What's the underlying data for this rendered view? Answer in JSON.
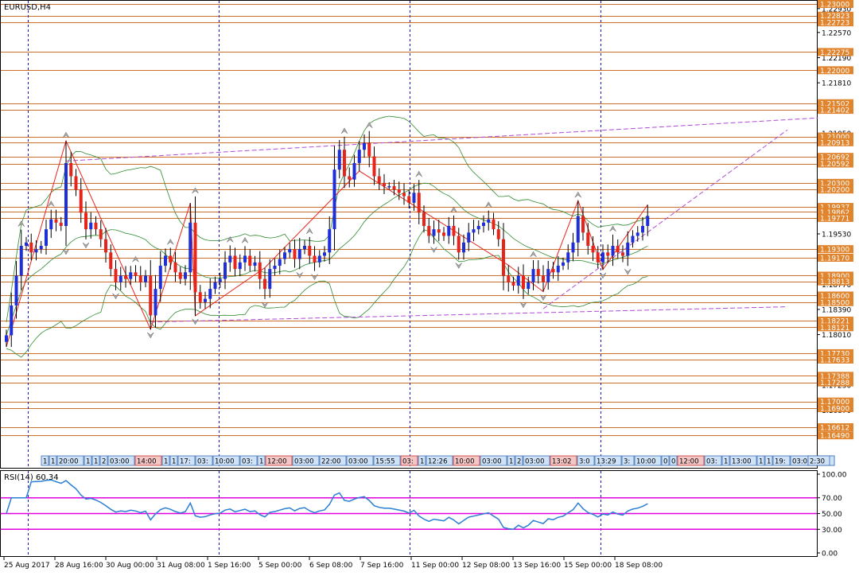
{
  "chart_data": [
    {
      "type": "candlestick",
      "title": "EURUSD,H4",
      "symbol": "EURUSD",
      "timeframe": "H4",
      "ylim": [
        1.163,
        1.23
      ],
      "x_labels": [
        "25 Aug 2017",
        "28 Aug 16:00",
        "30 Aug 00:00",
        "31 Aug 08:00",
        "1 Sep 16:00",
        "5 Sep 00:00",
        "6 Sep 08:00",
        "7 Sep 16:00",
        "11 Sep 00:00",
        "12 Sep 08:00",
        "13 Sep 16:00",
        "15 Sep 00:00",
        "18 Sep 08:00"
      ],
      "y_ticks": [
        "1.22930",
        "1.22570",
        "1.22190",
        "1.21810",
        "1.21430",
        "1.21050",
        "1.20670",
        "1.20290",
        "1.19910",
        "1.19530",
        "1.19150",
        "1.18770",
        "1.18390",
        "1.18010",
        "1.17630",
        "1.17250",
        "1.16870",
        "1.16490"
      ],
      "price_levels": [
        {
          "value": 1.23,
          "label": "1.23000"
        },
        {
          "value": 1.22823,
          "label": "1.22823"
        },
        {
          "value": 1.22723,
          "label": "1.22723"
        },
        {
          "value": 1.22275,
          "label": "1.22275"
        },
        {
          "value": 1.22,
          "label": "1.22000"
        },
        {
          "value": 1.21502,
          "label": "1.21502"
        },
        {
          "value": 1.21402,
          "label": "1.21402"
        },
        {
          "value": 1.21,
          "label": "1.21000"
        },
        {
          "value": 1.20913,
          "label": "1.20913"
        },
        {
          "value": 1.20692,
          "label": "1.20692"
        },
        {
          "value": 1.20592,
          "label": "1.20592"
        },
        {
          "value": 1.203,
          "label": "1.20300"
        },
        {
          "value": 1.202,
          "label": "1.20200"
        },
        {
          "value": 1.19937,
          "label": "1.19937"
        },
        {
          "value": 1.19862,
          "label": "1.19862"
        },
        {
          "value": 1.19771,
          "label": "1.19771"
        },
        {
          "value": 1.193,
          "label": "1.19300"
        },
        {
          "value": 1.1917,
          "label": "1.19170"
        },
        {
          "value": 1.189,
          "label": "1.18900"
        },
        {
          "value": 1.18813,
          "label": "1.18813"
        },
        {
          "value": 1.186,
          "label": "1.18600"
        },
        {
          "value": 1.185,
          "label": "1.18500"
        },
        {
          "value": 1.18221,
          "label": "1.18221"
        },
        {
          "value": 1.18121,
          "label": "1.18121"
        },
        {
          "value": 1.1773,
          "label": "1.17730"
        },
        {
          "value": 1.17633,
          "label": "1.17633"
        },
        {
          "value": 1.17388,
          "label": "1.17388"
        },
        {
          "value": 1.17288,
          "label": "1.17288"
        },
        {
          "value": 1.17,
          "label": "1.17000"
        },
        {
          "value": 1.169,
          "label": "1.16900"
        },
        {
          "value": 1.16612,
          "label": "1.16612"
        },
        {
          "value": 1.1649,
          "label": "1.16490"
        }
      ],
      "closes": [
        1.18,
        1.1845,
        1.189,
        1.1935,
        1.194,
        1.1925,
        1.193,
        1.1935,
        1.196,
        1.1975,
        1.197,
        1.1965,
        1.206,
        1.204,
        1.202,
        1.1985,
        1.196,
        1.197,
        1.196,
        1.1945,
        1.1925,
        1.19,
        1.188,
        1.189,
        1.1885,
        1.1895,
        1.189,
        1.188,
        1.189,
        1.183,
        1.187,
        1.1905,
        1.192,
        1.191,
        1.1895,
        1.1885,
        1.1895,
        1.197,
        1.1865,
        1.185,
        1.1855,
        1.187,
        1.188,
        1.1885,
        1.191,
        1.192,
        1.19,
        1.191,
        1.192,
        1.1905,
        1.191,
        1.1885,
        1.187,
        1.19,
        1.1905,
        1.1915,
        1.1925,
        1.193,
        1.1915,
        1.193,
        1.1935,
        1.192,
        1.191,
        1.192,
        1.1925,
        1.196,
        1.205,
        1.208,
        1.204,
        1.2035,
        1.206,
        1.208,
        1.209,
        1.207,
        1.204,
        1.203,
        1.2025,
        1.2025,
        1.202,
        1.2015,
        1.201,
        1.2,
        1.2015,
        1.1985,
        1.1965,
        1.195,
        1.196,
        1.1955,
        1.195,
        1.1965,
        1.195,
        1.1925,
        1.194,
        1.1955,
        1.196,
        1.1965,
        1.197,
        1.1975,
        1.196,
        1.1945,
        1.189,
        1.188,
        1.1875,
        1.189,
        1.187,
        1.188,
        1.19,
        1.189,
        1.188,
        1.19,
        1.1895,
        1.1905,
        1.191,
        1.1925,
        1.194,
        1.198,
        1.1955,
        1.1935,
        1.1925,
        1.191,
        1.1925,
        1.192,
        1.1935,
        1.1925,
        1.192,
        1.194,
        1.195,
        1.1955,
        1.1965,
        1.198
      ],
      "opens_from_previous_close": true,
      "first_open": 1.179,
      "colors": {
        "bull": "#1f2fd8",
        "bear": "#e8241a"
      },
      "rsi": {
        "label": "RSI(14) 60.34",
        "levels": [
          70,
          50,
          30
        ],
        "y_ticks": [
          "100.00",
          "70.00",
          "50.00",
          "30.00",
          "0.00"
        ],
        "ylim": [
          0,
          100
        ],
        "color": "#2a7fd4",
        "level_color": "#e000e0"
      },
      "trendlines_color": "#b04ad8",
      "bands_color": "#2e8b2e"
    }
  ],
  "ui": {
    "time_markers": [
      "1",
      "1",
      "20:00",
      "1",
      "1",
      "2",
      "03:00",
      "14:00",
      "1",
      "1",
      "17:",
      "03:",
      "10:00",
      "03:",
      "1",
      "12:00",
      "03:00",
      "22:00",
      "03:00",
      "15:55",
      "03:",
      "1",
      "12:26",
      "10:00",
      "03:00",
      "1",
      "2",
      "03:00",
      "13:02",
      "3:0",
      "13:29",
      "3:",
      "10:00",
      "0",
      "0",
      "12:00",
      "03:",
      "1",
      "13:00",
      "1",
      "1",
      "19:",
      "03:00",
      "1",
      "21",
      "03:00",
      "16:30",
      "11:00",
      "2:30"
    ],
    "time_marker_highlight": [
      7,
      15,
      20,
      23,
      28,
      35
    ],
    "colors": {
      "background": "#ffffff",
      "border": "#000000",
      "level_line": "#cc6f2a",
      "level_label_bg": "#e0842e",
      "level_label_fg": "#ffffff",
      "period_sep": "#1515c8",
      "marker_bg": "#cfe2f7",
      "marker_border": "#3a6fb5",
      "marker_hi_bg": "#f5c6c6",
      "marker_hi_border": "#c43030"
    }
  }
}
